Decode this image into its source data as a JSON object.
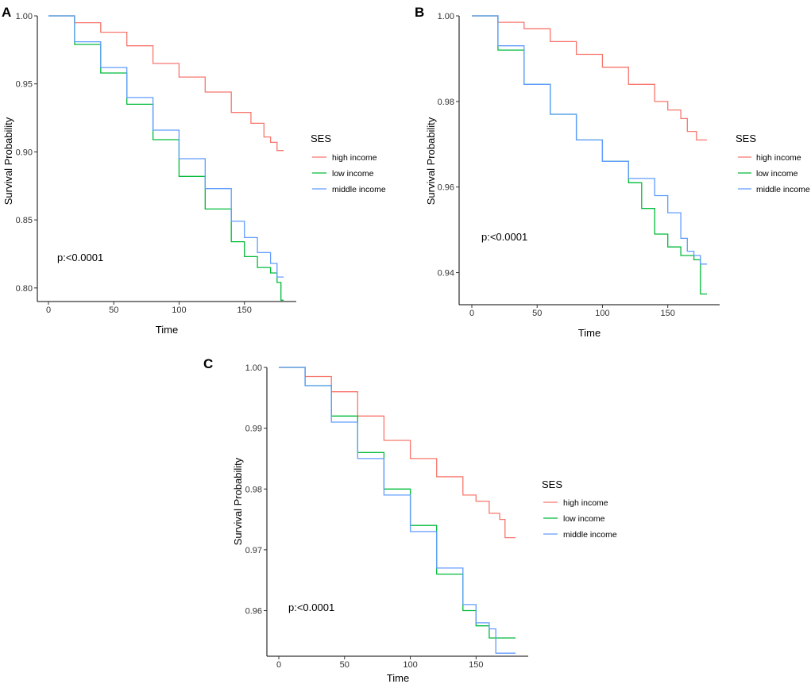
{
  "panels": [
    {
      "letter": "A",
      "xlabel": "Time",
      "ylabel": "Survival Probability",
      "pvalue_text": "p:<0.0001",
      "legend_title": "SES"
    },
    {
      "letter": "B",
      "xlabel": "Time",
      "ylabel": "Survival Probability",
      "pvalue_text": "p:<0.0001",
      "legend_title": "SES"
    },
    {
      "letter": "C",
      "xlabel": "Time",
      "ylabel": "Survival Probability",
      "pvalue_text": "p:<0.0001",
      "legend_title": "SES"
    }
  ],
  "chart_data": [
    {
      "type": "line",
      "panel": "A",
      "title": "",
      "xlabel": "Time",
      "ylabel": "Survival Probability",
      "xlim": [
        0,
        180
      ],
      "ylim": [
        0.79,
        1.0
      ],
      "xticks": [
        0,
        50,
        100,
        150
      ],
      "xtick_labels": [
        "0",
        "50",
        "100",
        "150"
      ],
      "yticks": [
        0.8,
        0.85,
        0.9,
        0.95,
        1.0
      ],
      "ytick_labels": [
        "0.80",
        "0.85",
        "0.90",
        "0.95",
        "1.00"
      ],
      "legend_title": "SES",
      "legend_position": "right",
      "grid": false,
      "annotation": "p:<0.0001",
      "series": [
        {
          "name": "high income",
          "color": "#F8766D",
          "x": [
            0,
            20,
            40,
            60,
            80,
            100,
            120,
            140,
            155,
            165,
            170,
            175,
            180
          ],
          "y": [
            1.0,
            0.995,
            0.988,
            0.978,
            0.965,
            0.955,
            0.944,
            0.929,
            0.921,
            0.911,
            0.907,
            0.901,
            0.901
          ]
        },
        {
          "name": "low income",
          "color": "#00BA38",
          "x": [
            0,
            20,
            40,
            60,
            80,
            100,
            120,
            140,
            150,
            160,
            170,
            175,
            178,
            180
          ],
          "y": [
            1.0,
            0.979,
            0.958,
            0.935,
            0.909,
            0.882,
            0.858,
            0.834,
            0.823,
            0.815,
            0.811,
            0.804,
            0.791,
            0.791
          ]
        },
        {
          "name": "middle income",
          "color": "#619CFF",
          "x": [
            0,
            20,
            40,
            60,
            80,
            100,
            120,
            140,
            150,
            160,
            170,
            175,
            180
          ],
          "y": [
            1.0,
            0.981,
            0.962,
            0.94,
            0.916,
            0.895,
            0.873,
            0.849,
            0.837,
            0.826,
            0.818,
            0.808,
            0.808
          ]
        }
      ]
    },
    {
      "type": "line",
      "panel": "B",
      "title": "",
      "xlabel": "Time",
      "ylabel": "Survival Probability",
      "xlim": [
        0,
        180
      ],
      "ylim": [
        0.9325,
        1.0
      ],
      "xticks": [
        0,
        50,
        100,
        150
      ],
      "xtick_labels": [
        "0",
        "50",
        "100",
        "150"
      ],
      "yticks": [
        0.94,
        0.96,
        0.98,
        1.0
      ],
      "ytick_labels": [
        "0.94",
        "0.96",
        "0.98",
        "1.00"
      ],
      "legend_title": "SES",
      "legend_position": "right",
      "grid": false,
      "annotation": "p:<0.0001",
      "series": [
        {
          "name": "high income",
          "color": "#F8766D",
          "x": [
            0,
            20,
            40,
            60,
            80,
            100,
            120,
            140,
            150,
            160,
            165,
            170,
            172,
            180
          ],
          "y": [
            1.0,
            0.9985,
            0.997,
            0.994,
            0.991,
            0.988,
            0.984,
            0.98,
            0.978,
            0.976,
            0.973,
            0.973,
            0.971,
            0.971
          ]
        },
        {
          "name": "low income",
          "color": "#00BA38",
          "x": [
            0,
            20,
            40,
            60,
            80,
            100,
            120,
            130,
            140,
            150,
            160,
            170,
            175,
            180
          ],
          "y": [
            1.0,
            0.992,
            0.984,
            0.977,
            0.971,
            0.966,
            0.961,
            0.955,
            0.949,
            0.946,
            0.944,
            0.943,
            0.935,
            0.935
          ]
        },
        {
          "name": "middle income",
          "color": "#619CFF",
          "x": [
            0,
            20,
            40,
            60,
            80,
            100,
            120,
            140,
            150,
            160,
            165,
            170,
            175,
            180
          ],
          "y": [
            1.0,
            0.993,
            0.984,
            0.977,
            0.971,
            0.966,
            0.962,
            0.958,
            0.954,
            0.948,
            0.945,
            0.944,
            0.942,
            0.942
          ]
        }
      ]
    },
    {
      "type": "line",
      "panel": "C",
      "title": "",
      "xlabel": "Time",
      "ylabel": "Survival Probability",
      "xlim": [
        0,
        180
      ],
      "ylim": [
        0.9525,
        1.0
      ],
      "xticks": [
        0,
        50,
        100,
        150
      ],
      "xtick_labels": [
        "0",
        "50",
        "100",
        "150"
      ],
      "yticks": [
        0.96,
        0.97,
        0.98,
        0.99,
        1.0
      ],
      "ytick_labels": [
        "0.96",
        "0.97",
        "0.98",
        "0.99",
        "1.00"
      ],
      "legend_title": "SES",
      "legend_position": "right",
      "grid": false,
      "annotation": "p:<0.0001",
      "series": [
        {
          "name": "high income",
          "color": "#F8766D",
          "x": [
            0,
            20,
            40,
            60,
            80,
            100,
            120,
            140,
            150,
            160,
            168,
            172,
            175,
            180
          ],
          "y": [
            1.0,
            0.9985,
            0.996,
            0.992,
            0.988,
            0.985,
            0.982,
            0.979,
            0.978,
            0.976,
            0.975,
            0.972,
            0.972,
            0.972
          ]
        },
        {
          "name": "low income",
          "color": "#00BA38",
          "x": [
            0,
            20,
            40,
            60,
            80,
            100,
            120,
            140,
            150,
            160,
            170,
            180
          ],
          "y": [
            1.0,
            0.997,
            0.992,
            0.986,
            0.98,
            0.974,
            0.966,
            0.96,
            0.9575,
            0.9555,
            0.9555,
            0.9555
          ]
        },
        {
          "name": "middle income",
          "color": "#619CFF",
          "x": [
            0,
            20,
            40,
            60,
            80,
            100,
            120,
            140,
            150,
            160,
            165,
            170,
            180
          ],
          "y": [
            1.0,
            0.997,
            0.991,
            0.985,
            0.979,
            0.973,
            0.967,
            0.961,
            0.958,
            0.957,
            0.953,
            0.953,
            0.953
          ]
        }
      ]
    }
  ]
}
